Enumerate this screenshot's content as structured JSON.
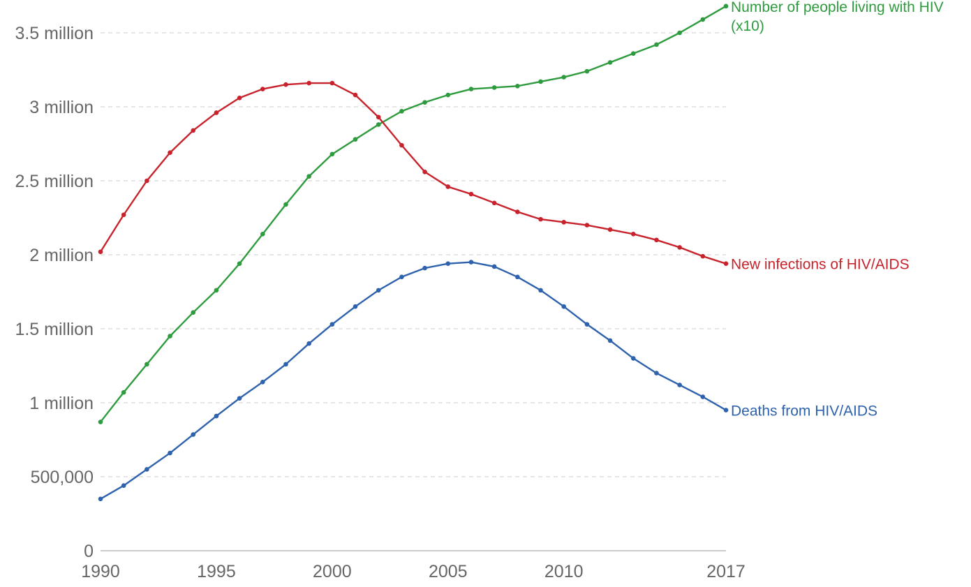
{
  "chart_data": {
    "type": "line",
    "title": "",
    "xlabel": "",
    "ylabel": "",
    "xlim": [
      1990,
      2017
    ],
    "ylim": [
      0,
      3500000
    ],
    "grid": true,
    "legend_position": "inline-right",
    "x_ticks": [
      "1990",
      "1995",
      "2000",
      "2005",
      "2010",
      "2017"
    ],
    "y_ticks": [
      {
        "value": 0,
        "label": "0"
      },
      {
        "value": 500000,
        "label": "500,000"
      },
      {
        "value": 1000000,
        "label": "1 million"
      },
      {
        "value": 1500000,
        "label": "1.5 million"
      },
      {
        "value": 2000000,
        "label": "2 million"
      },
      {
        "value": 2500000,
        "label": "2.5 million"
      },
      {
        "value": 3000000,
        "label": "3 million"
      },
      {
        "value": 3500000,
        "label": "3.5 million"
      }
    ],
    "x": [
      1990,
      1991,
      1992,
      1993,
      1994,
      1995,
      1996,
      1997,
      1998,
      1999,
      2000,
      2001,
      2002,
      2003,
      2004,
      2005,
      2006,
      2007,
      2008,
      2009,
      2010,
      2011,
      2012,
      2013,
      2014,
      2015,
      2016,
      2017
    ],
    "series": [
      {
        "name": "Number of people living with HIV (x10)",
        "label_lines": [
          "Number of people living with HIV",
          "(x10)"
        ],
        "color": "#2e9b3e",
        "values": [
          870000,
          1070000,
          1260000,
          1450000,
          1610000,
          1760000,
          1940000,
          2140000,
          2340000,
          2530000,
          2680000,
          2780000,
          2880000,
          2970000,
          3030000,
          3080000,
          3120000,
          3130000,
          3140000,
          3170000,
          3200000,
          3240000,
          3300000,
          3360000,
          3420000,
          3500000,
          3590000,
          3680000
        ]
      },
      {
        "name": "New infections of HIV/AIDS",
        "label_lines": [
          "New infections of HIV/AIDS"
        ],
        "color": "#c8232c",
        "values": [
          2020000,
          2270000,
          2500000,
          2690000,
          2840000,
          2960000,
          3060000,
          3120000,
          3150000,
          3160000,
          3160000,
          3080000,
          2930000,
          2740000,
          2560000,
          2460000,
          2410000,
          2350000,
          2290000,
          2240000,
          2220000,
          2200000,
          2170000,
          2140000,
          2100000,
          2050000,
          1990000,
          1940000
        ]
      },
      {
        "name": "Deaths from HIV/AIDS",
        "label_lines": [
          "Deaths from HIV/AIDS"
        ],
        "color": "#2f62ad",
        "values": [
          350000,
          440000,
          550000,
          660000,
          785000,
          910000,
          1030000,
          1140000,
          1260000,
          1400000,
          1530000,
          1650000,
          1760000,
          1850000,
          1910000,
          1940000,
          1950000,
          1920000,
          1850000,
          1760000,
          1650000,
          1530000,
          1420000,
          1300000,
          1200000,
          1120000,
          1040000,
          950000
        ]
      }
    ]
  }
}
